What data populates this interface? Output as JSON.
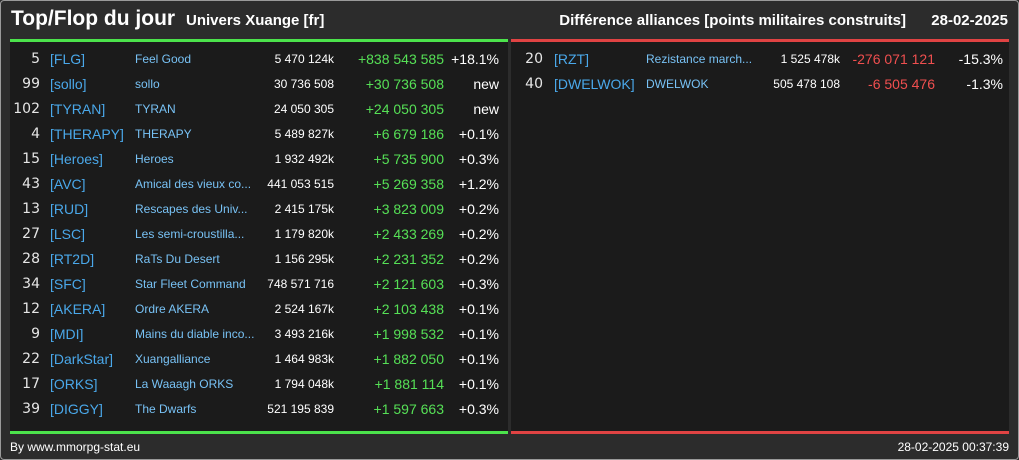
{
  "header": {
    "title": "Top/Flop du jour",
    "server": "Univers Xuange [fr]",
    "subtitle": "Différence alliances [points militaires construits]",
    "date": "28-02-2025"
  },
  "colors": {
    "positive": "#56e056",
    "negative": "#ef4f4f",
    "tag": "#4aa8ea",
    "name": "#78c2f5",
    "top_bar": "#4ce34c",
    "flop_bar": "#e04343"
  },
  "top": [
    {
      "rank": "5",
      "tag": "[FLG]",
      "name": "Feel Good",
      "points": "5 470 124k",
      "diff": "+838 543 585",
      "pct": "+18.1%"
    },
    {
      "rank": "99",
      "tag": "[sollo]",
      "name": "sollo",
      "points": "30 736 508",
      "diff": "+30 736 508",
      "pct": "new"
    },
    {
      "rank": "102",
      "tag": "[TYRAN]",
      "name": "TYRAN",
      "points": "24 050 305",
      "diff": "+24 050 305",
      "pct": "new"
    },
    {
      "rank": "4",
      "tag": "[THERAPY]",
      "name": "THERAPY",
      "points": "5 489 827k",
      "diff": "+6 679 186",
      "pct": "+0.1%"
    },
    {
      "rank": "15",
      "tag": "[Heroes]",
      "name": "Heroes",
      "points": "1 932 492k",
      "diff": "+5 735 900",
      "pct": "+0.3%"
    },
    {
      "rank": "43",
      "tag": "[AVC]",
      "name": "Amical des vieux co...",
      "points": "441 053 515",
      "diff": "+5 269 358",
      "pct": "+1.2%"
    },
    {
      "rank": "13",
      "tag": "[RUD]",
      "name": "Rescapes des Univ...",
      "points": "2 415 175k",
      "diff": "+3 823 009",
      "pct": "+0.2%"
    },
    {
      "rank": "27",
      "tag": "[LSC]",
      "name": "Les semi-croustilla...",
      "points": "1 179 820k",
      "diff": "+2 433 269",
      "pct": "+0.2%"
    },
    {
      "rank": "28",
      "tag": "[RT2D]",
      "name": "RaTs Du Desert",
      "points": "1 156 295k",
      "diff": "+2 231 352",
      "pct": "+0.2%"
    },
    {
      "rank": "34",
      "tag": "[SFC]",
      "name": "Star Fleet Command",
      "points": "748 571 716",
      "diff": "+2 121 603",
      "pct": "+0.3%"
    },
    {
      "rank": "12",
      "tag": "[AKERA]",
      "name": "Ordre AKERA",
      "points": "2 524 167k",
      "diff": "+2 103 438",
      "pct": "+0.1%"
    },
    {
      "rank": "9",
      "tag": "[MDI]",
      "name": "Mains du diable inco...",
      "points": "3 493 216k",
      "diff": "+1 998 532",
      "pct": "+0.1%"
    },
    {
      "rank": "22",
      "tag": "[DarkStar]",
      "name": "Xuangalliance",
      "points": "1 464 983k",
      "diff": "+1 882 050",
      "pct": "+0.1%"
    },
    {
      "rank": "17",
      "tag": "[ORKS]",
      "name": "La Waaagh ORKS",
      "points": "1 794 048k",
      "diff": "+1 881 114",
      "pct": "+0.1%"
    },
    {
      "rank": "39",
      "tag": "[DIGGY]",
      "name": "The Dwarfs",
      "points": "521 195 839",
      "diff": "+1 597 663",
      "pct": "+0.3%"
    }
  ],
  "flop": [
    {
      "rank": "20",
      "tag": "[RZT]",
      "name": "Rezistance march...",
      "points": "1 525 478k",
      "diff": "-276 071 121",
      "pct": "-15.3%"
    },
    {
      "rank": "40",
      "tag": "[DWELWOK]",
      "name": "DWELWOK",
      "points": "505 478 108",
      "diff": "-6 505 476",
      "pct": "-1.3%"
    }
  ],
  "footer": {
    "source": "By www.mmorpg-stat.eu",
    "timestamp": "28-02-2025 00:37:39"
  }
}
